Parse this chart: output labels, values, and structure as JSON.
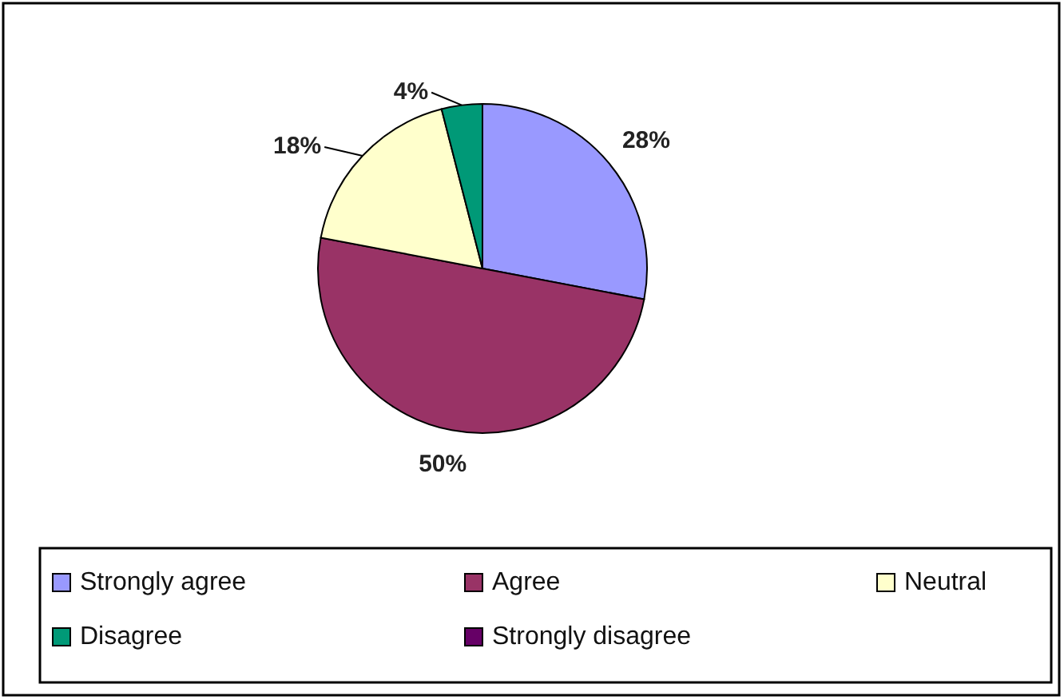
{
  "chart_data": {
    "type": "pie",
    "categories": [
      "Strongly agree",
      "Agree",
      "Neutral",
      "Disagree",
      "Strongly disagree"
    ],
    "values": [
      28,
      50,
      18,
      4,
      0
    ],
    "colors": [
      "#9999ff",
      "#993366",
      "#ffffcc",
      "#009977",
      "#660066"
    ],
    "value_labels": [
      "28%",
      "50%",
      "18%",
      "4%",
      null
    ],
    "legend": "bottom"
  }
}
